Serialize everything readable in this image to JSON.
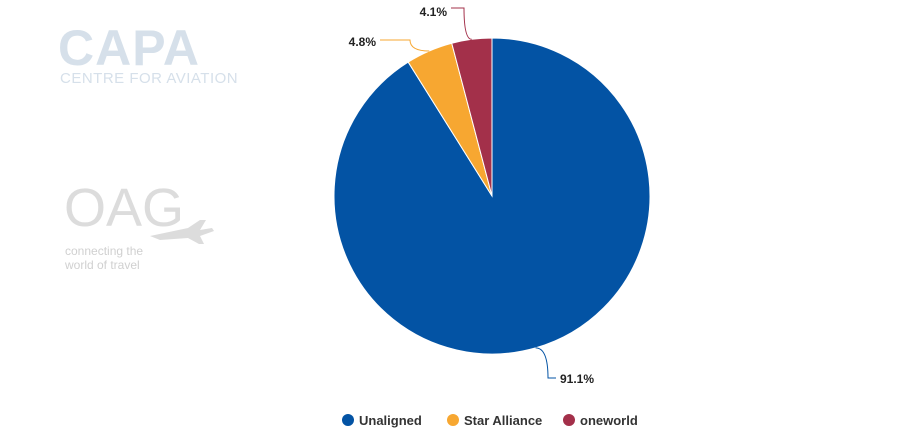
{
  "watermarks": {
    "capa_main": "CAPA",
    "capa_sub": "CENTRE FOR AVIATION",
    "oag_main": "OAG",
    "oag_sub_line1": "connecting the",
    "oag_sub_line2": "world of travel"
  },
  "chart_data": {
    "type": "pie",
    "title": "",
    "legend_position": "bottom-center",
    "slices": [
      {
        "name": "Unaligned",
        "value": 91.1,
        "label": "91.1%",
        "color": "#0353a4"
      },
      {
        "name": "Star Alliance",
        "value": 4.8,
        "label": "4.8%",
        "color": "#f7a731"
      },
      {
        "name": "oneworld",
        "value": 4.1,
        "label": "4.1%",
        "color": "#a3304a"
      }
    ]
  }
}
